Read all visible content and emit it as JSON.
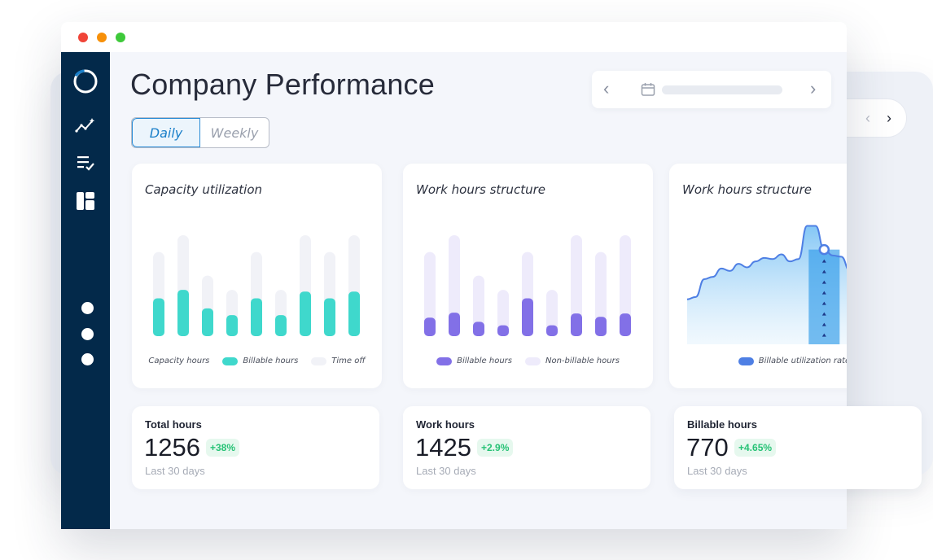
{
  "colors": {
    "sidebar_bg": "#03294a",
    "accent_blue": "#1a7fc9",
    "teal": "#3fd8cc",
    "purple": "#8270e7",
    "light_bar": "#f1f2f7",
    "light_purple": "#eeebfb",
    "line_blue": "#4e7fe4",
    "positive": "#26c275"
  },
  "window": {
    "traffic_lights": [
      "#f04438",
      "#f79009",
      "#3ec93a"
    ]
  },
  "sidebar": {
    "logo_icon": "ring-logo-icon",
    "items": [
      {
        "icon": "analytics-icon"
      },
      {
        "icon": "checklist-icon"
      },
      {
        "icon": "dashboard-icon"
      }
    ],
    "pager_dots": 3
  },
  "header": {
    "title": "Company Performance"
  },
  "date_nav": {
    "prev_icon": "‹",
    "next_icon": "›",
    "calendar_icon": "calendar-icon"
  },
  "background_nav": {
    "prev_icon": "‹",
    "next_icon": "›"
  },
  "toggle": {
    "options": [
      "Daily",
      "Weekly"
    ],
    "selected": "Daily"
  },
  "cards": {
    "capacity": {
      "title": "Capacity utilization",
      "legend": [
        "Capacity hours",
        "Billable hours",
        "Time off"
      ]
    },
    "structure": {
      "title": "Work hours structure",
      "legend": [
        "Billable hours",
        "Non-billable hours"
      ]
    },
    "trend": {
      "title": "Work hours structure",
      "legend": [
        "Billable utilization rate"
      ]
    }
  },
  "stats": [
    {
      "label": "Total hours",
      "value": "1256",
      "delta": "+38%",
      "period": "Last 30 days"
    },
    {
      "label": "Work hours",
      "value": "1425",
      "delta": "+2.9%",
      "period": "Last 30 days"
    },
    {
      "label": "Billable hours",
      "value": "770",
      "delta": "+4.65%",
      "period": "Last 30 days"
    }
  ],
  "chart_data": [
    {
      "type": "bar",
      "title": "Capacity utilization",
      "categories": [
        "1",
        "2",
        "3",
        "4",
        "5",
        "6",
        "7",
        "8",
        "9"
      ],
      "series": [
        {
          "name": "Capacity hours",
          "values": [
            100,
            120,
            72,
            55,
            100,
            55,
            120,
            100,
            120
          ]
        },
        {
          "name": "Billable hours",
          "values": [
            45,
            55,
            33,
            25,
            45,
            25,
            53,
            45,
            53
          ]
        }
      ],
      "ylim": [
        0,
        120
      ]
    },
    {
      "type": "bar",
      "title": "Work hours structure",
      "categories": [
        "1",
        "2",
        "3",
        "4",
        "5",
        "6",
        "7",
        "8",
        "9"
      ],
      "series": [
        {
          "name": "Non-billable hours",
          "values": [
            100,
            120,
            72,
            55,
            100,
            55,
            120,
            100,
            120
          ]
        },
        {
          "name": "Billable hours",
          "values": [
            22,
            28,
            17,
            13,
            45,
            13,
            27,
            23,
            27
          ]
        }
      ],
      "ylim": [
        0,
        120
      ]
    },
    {
      "type": "area",
      "title": "Work hours structure",
      "series": [
        {
          "name": "Billable utilization rate",
          "x": [
            0,
            4,
            8,
            12,
            16,
            20,
            24,
            28,
            32,
            36,
            40,
            44,
            48,
            52,
            56,
            60,
            64,
            68,
            72,
            76,
            80,
            84,
            88,
            92,
            96,
            100
          ],
          "values": [
            38,
            40,
            55,
            57,
            64,
            62,
            68,
            65,
            70,
            73,
            72,
            76,
            70,
            72,
            100,
            100,
            80,
            75,
            74,
            62,
            58,
            55,
            62,
            54,
            58,
            67
          ]
        }
      ],
      "ylim": [
        0,
        110
      ],
      "highlight_index": 16
    }
  ]
}
